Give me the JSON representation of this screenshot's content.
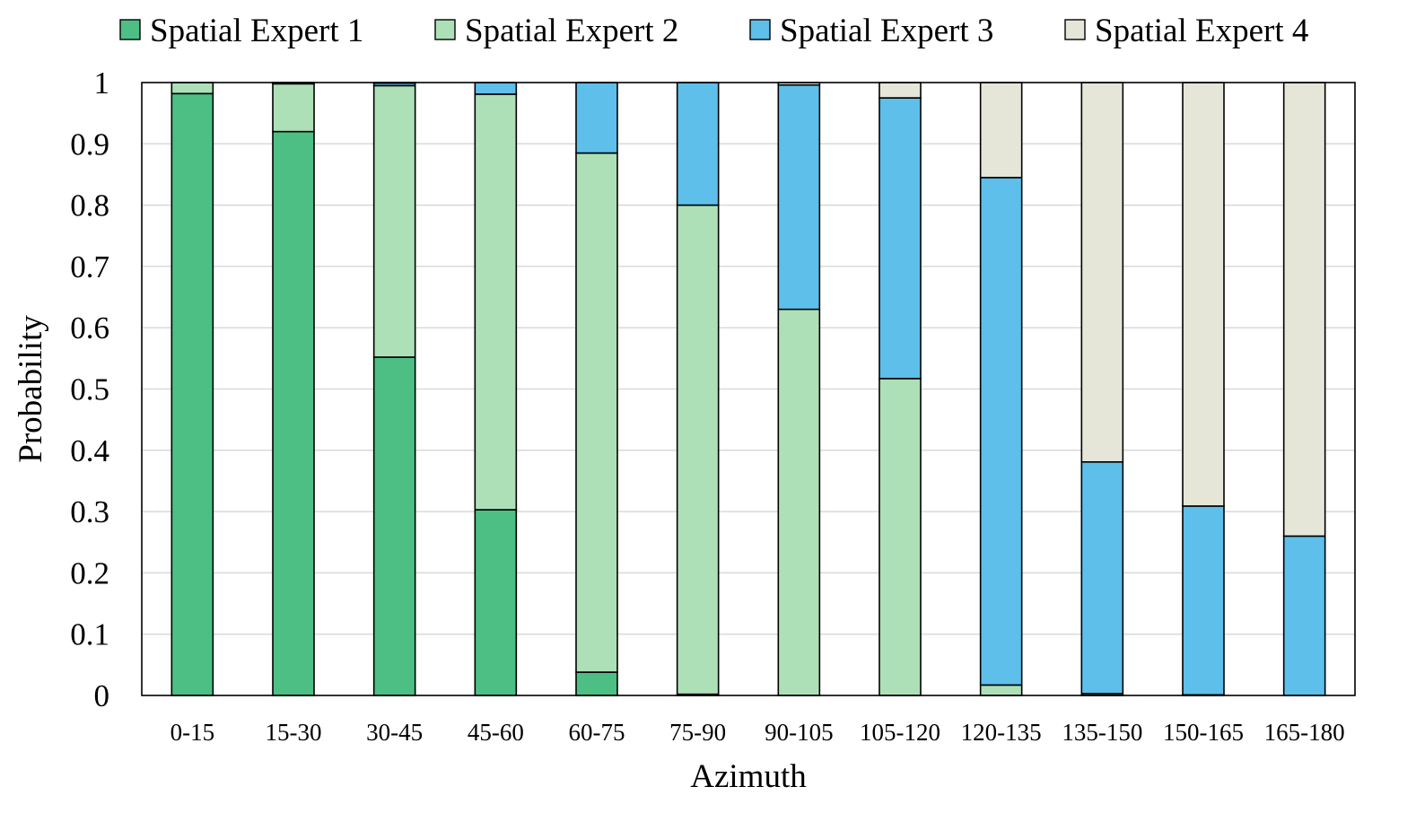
{
  "chart_data": {
    "type": "bar",
    "stacked": true,
    "xlabel": "Azimuth",
    "ylabel": "Probability",
    "ylim": [
      0,
      1
    ],
    "yticks": [
      0,
      0.1,
      0.2,
      0.3,
      0.4,
      0.5,
      0.6,
      0.7,
      0.8,
      0.9,
      1
    ],
    "ytick_labels": [
      "0",
      "0.1",
      "0.2",
      "0.3",
      "0.4",
      "0.5",
      "0.6",
      "0.7",
      "0.8",
      "0.9",
      "1"
    ],
    "grid": "horizontal",
    "legend_position": "top",
    "categories": [
      "0-15",
      "15-30",
      "30-45",
      "45-60",
      "60-75",
      "75-90",
      "90-105",
      "105-120",
      "120-135",
      "135-150",
      "150-165",
      "165-180"
    ],
    "series": [
      {
        "name": "Spatial Expert 1",
        "color": "#4dbf84",
        "values": [
          0.982,
          0.92,
          0.552,
          0.303,
          0.038,
          0.002,
          0.0,
          0.0,
          0.0,
          0.0,
          0.0,
          0.0
        ]
      },
      {
        "name": "Spatial Expert 2",
        "color": "#aee0b8",
        "values": [
          0.018,
          0.078,
          0.443,
          0.678,
          0.847,
          0.798,
          0.63,
          0.517,
          0.017,
          0.003,
          0.001,
          0.0
        ]
      },
      {
        "name": "Spatial Expert 3",
        "color": "#5dbfea",
        "values": [
          0.0,
          0.0,
          0.004,
          0.019,
          0.115,
          0.2,
          0.366,
          0.458,
          0.828,
          0.378,
          0.308,
          0.26
        ]
      },
      {
        "name": "Spatial Expert 4",
        "color": "#e6e6d8",
        "values": [
          0.0,
          0.002,
          0.001,
          0.0,
          0.0,
          0.0,
          0.004,
          0.025,
          0.155,
          0.619,
          0.691,
          0.74
        ]
      }
    ]
  }
}
